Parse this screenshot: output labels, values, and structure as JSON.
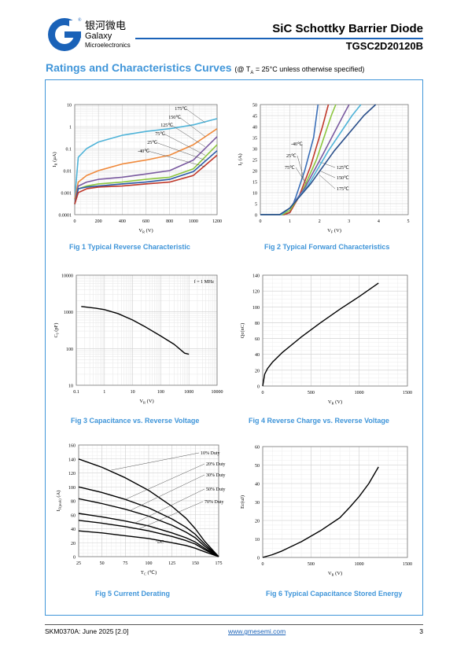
{
  "header": {
    "brand_cn": "银河微电",
    "brand_en": "Galaxy",
    "brand_sub": "Microelectronics",
    "doc_title": "SiC Schottky Barrier Diode",
    "part_no": "TGSC2D20120B"
  },
  "section": {
    "title": "Ratings and Characteristics Curves",
    "condition": "(@ T",
    "condition_sub": "A",
    "condition_rest": " = 25°C unless otherwise specified)"
  },
  "footer": {
    "left": "SKM0370A: June 2025 [2.0]",
    "link": "www.gmesemi.com",
    "page": "3"
  },
  "colors": {
    "accent": "#3f95d9",
    "brand": "#1a62b8"
  },
  "chart_data": [
    {
      "id": "fig1",
      "type": "line",
      "caption": "Fig 1    Typical Reverse Characteristic",
      "xlabel": "V",
      "xlabel_sub": "R",
      "xlabel_unit": "(V)",
      "ylabel": "I",
      "ylabel_sub": "R",
      "ylabel_unit": "(μA)",
      "xlim": [
        0,
        1200
      ],
      "ylim": [
        0.0001,
        10
      ],
      "ylog": true,
      "xticks": [
        "0",
        "200",
        "400",
        "600",
        "800",
        "1000",
        "1200"
      ],
      "yticks": [
        "0.0001",
        "0.001",
        "0.01",
        "0.1",
        "1",
        "10"
      ],
      "series": [
        {
          "name": "175℃",
          "color": "#4fb3d8",
          "points": [
            [
              0,
              0.0005
            ],
            [
              30,
              0.04
            ],
            [
              100,
              0.1
            ],
            [
              200,
              0.2
            ],
            [
              400,
              0.4
            ],
            [
              600,
              0.6
            ],
            [
              800,
              0.8
            ],
            [
              1000,
              1.2
            ],
            [
              1200,
              2.3
            ]
          ]
        },
        {
          "name": "150℃",
          "color": "#f08a3c",
          "points": [
            [
              0,
              0.0005
            ],
            [
              30,
              0.003
            ],
            [
              100,
              0.006
            ],
            [
              200,
              0.01
            ],
            [
              400,
              0.02
            ],
            [
              600,
              0.03
            ],
            [
              800,
              0.05
            ],
            [
              1000,
              0.15
            ],
            [
              1200,
              0.8
            ]
          ]
        },
        {
          "name": "125℃",
          "color": "#7a5aa0",
          "points": [
            [
              0,
              0.0003
            ],
            [
              30,
              0.002
            ],
            [
              100,
              0.003
            ],
            [
              200,
              0.004
            ],
            [
              400,
              0.005
            ],
            [
              600,
              0.007
            ],
            [
              800,
              0.01
            ],
            [
              1000,
              0.03
            ],
            [
              1200,
              0.35
            ]
          ]
        },
        {
          "name": "75℃",
          "color": "#8cc63e",
          "points": [
            [
              0,
              0.0003
            ],
            [
              30,
              0.0015
            ],
            [
              100,
              0.002
            ],
            [
              200,
              0.0025
            ],
            [
              400,
              0.003
            ],
            [
              600,
              0.004
            ],
            [
              800,
              0.005
            ],
            [
              1000,
              0.012
            ],
            [
              1200,
              0.15
            ]
          ]
        },
        {
          "name": "25℃",
          "color": "#2a5aa8",
          "points": [
            [
              0,
              0.0003
            ],
            [
              30,
              0.0015
            ],
            [
              100,
              0.0018
            ],
            [
              200,
              0.002
            ],
            [
              400,
              0.0025
            ],
            [
              600,
              0.003
            ],
            [
              800,
              0.004
            ],
            [
              1000,
              0.009
            ],
            [
              1200,
              0.08
            ]
          ]
        },
        {
          "name": "-40℃",
          "color": "#c0392b",
          "points": [
            [
              0,
              0.0003
            ],
            [
              30,
              0.001
            ],
            [
              100,
              0.0015
            ],
            [
              200,
              0.0018
            ],
            [
              400,
              0.002
            ],
            [
              600,
              0.0025
            ],
            [
              800,
              0.003
            ],
            [
              1000,
              0.006
            ],
            [
              1200,
              0.05
            ]
          ]
        }
      ]
    },
    {
      "id": "fig2",
      "type": "line",
      "caption": "Fig 2    Typical Forward Characteristics",
      "xlabel": "V",
      "xlabel_sub": "F",
      "xlabel_unit": "(V)",
      "ylabel": "I",
      "ylabel_sub": "F",
      "ylabel_unit": "(A)",
      "xlim": [
        0,
        5
      ],
      "ylim": [
        0,
        50
      ],
      "xticks": [
        "0",
        "1",
        "2",
        "3",
        "4",
        "5"
      ],
      "yticks": [
        "0",
        "5",
        "10",
        "15",
        "20",
        "25",
        "30",
        "35",
        "40",
        "45",
        "50"
      ],
      "series": [
        {
          "name": "-40℃",
          "color": "#3b6fb8",
          "points": [
            [
              0,
              0
            ],
            [
              0.8,
              0
            ],
            [
              1.0,
              1
            ],
            [
              1.2,
              8
            ],
            [
              1.5,
              20
            ],
            [
              1.8,
              35
            ],
            [
              1.95,
              50
            ]
          ]
        },
        {
          "name": "25℃",
          "color": "#c0392b",
          "points": [
            [
              0,
              0
            ],
            [
              0.8,
              0
            ],
            [
              1.0,
              1
            ],
            [
              1.3,
              8
            ],
            [
              1.7,
              22
            ],
            [
              2.1,
              40
            ],
            [
              2.3,
              50
            ]
          ]
        },
        {
          "name": "75℃",
          "color": "#8cc63e",
          "points": [
            [
              0,
              0
            ],
            [
              0.75,
              0
            ],
            [
              1.0,
              2
            ],
            [
              1.4,
              10
            ],
            [
              1.9,
              25
            ],
            [
              2.4,
              45
            ],
            [
              2.55,
              50
            ]
          ]
        },
        {
          "name": "125℃",
          "color": "#7a5aa0",
          "points": [
            [
              0,
              0
            ],
            [
              0.7,
              0
            ],
            [
              1.0,
              3
            ],
            [
              1.5,
              12
            ],
            [
              2.1,
              27
            ],
            [
              2.8,
              45
            ],
            [
              3.0,
              50
            ]
          ]
        },
        {
          "name": "150℃",
          "color": "#4fb3d8",
          "points": [
            [
              0,
              0
            ],
            [
              0.7,
              0
            ],
            [
              1.0,
              3
            ],
            [
              1.6,
              13
            ],
            [
              2.3,
              29
            ],
            [
              3.1,
              45
            ],
            [
              3.4,
              50
            ]
          ]
        },
        {
          "name": "175℃",
          "color": "#2a4f8a",
          "points": [
            [
              0,
              0
            ],
            [
              0.65,
              0
            ],
            [
              1.0,
              3
            ],
            [
              1.7,
              14
            ],
            [
              2.5,
              29
            ],
            [
              3.5,
              45
            ],
            [
              3.9,
              50
            ]
          ]
        }
      ]
    },
    {
      "id": "fig3",
      "type": "line",
      "caption": "Fig 3    Capacitance vs. Reverse Voltage",
      "xlabel": "V",
      "xlabel_sub": "R",
      "xlabel_unit": "(V)",
      "ylabel": "C",
      "ylabel_sub": "J",
      "ylabel_unit": "(pF)",
      "xlim": [
        0.1,
        10000
      ],
      "ylim": [
        10,
        10000
      ],
      "xlog": true,
      "ylog": true,
      "xticks": [
        "0.1",
        "1",
        "10",
        "100",
        "1000",
        "10000"
      ],
      "yticks": [
        "10",
        "100",
        "1000",
        "10000"
      ],
      "annotation": "f = 1 MHz",
      "series": [
        {
          "name": "",
          "color": "#000000",
          "points": [
            [
              0.15,
              1400
            ],
            [
              0.5,
              1250
            ],
            [
              1,
              1150
            ],
            [
              3,
              900
            ],
            [
              10,
              600
            ],
            [
              30,
              380
            ],
            [
              100,
              220
            ],
            [
              300,
              130
            ],
            [
              700,
              75
            ],
            [
              1000,
              70
            ]
          ]
        }
      ]
    },
    {
      "id": "fig4",
      "type": "line",
      "caption": "Fig 4    Reverse Charge vs. Reverse Voltage",
      "xlabel": "V",
      "xlabel_sub": "R",
      "xlabel_unit": "(V)",
      "ylabel": "Qc(nC)",
      "xlim": [
        0,
        1500
      ],
      "ylim": [
        0,
        140
      ],
      "xticks": [
        "0",
        "500",
        "1000",
        "1500"
      ],
      "yticks": [
        "0",
        "20",
        "40",
        "60",
        "80",
        "100",
        "120",
        "140"
      ],
      "series": [
        {
          "name": "",
          "color": "#000000",
          "points": [
            [
              0,
              0
            ],
            [
              20,
              15
            ],
            [
              50,
              22
            ],
            [
              100,
              30
            ],
            [
              200,
              42
            ],
            [
              400,
              62
            ],
            [
              600,
              80
            ],
            [
              800,
              97
            ],
            [
              1000,
              113
            ],
            [
              1200,
              130
            ]
          ]
        }
      ]
    },
    {
      "id": "fig5",
      "type": "line",
      "caption": "Fig 5    Current Derating",
      "xlabel": "T",
      "xlabel_sub": "C",
      "xlabel_unit": "(℃)",
      "ylabel": "I",
      "ylabel_sub": "F(peak)",
      "ylabel_unit": "(A)",
      "xlim": [
        25,
        175
      ],
      "ylim": [
        0,
        160
      ],
      "xticks": [
        "25",
        "50",
        "75",
        "100",
        "125",
        "150",
        "175"
      ],
      "yticks": [
        "0",
        "20",
        "40",
        "60",
        "80",
        "100",
        "120",
        "140",
        "160"
      ],
      "series": [
        {
          "name": "10% Duty",
          "color": "#000000",
          "points": [
            [
              25,
              140
            ],
            [
              50,
              128
            ],
            [
              75,
              113
            ],
            [
              100,
              95
            ],
            [
              125,
              72
            ],
            [
              140,
              55
            ],
            [
              150,
              40
            ],
            [
              160,
              22
            ],
            [
              175,
              0
            ]
          ]
        },
        {
          "name": "20% Duty",
          "color": "#000000",
          "points": [
            [
              25,
              100
            ],
            [
              50,
              92
            ],
            [
              75,
              82
            ],
            [
              100,
              70
            ],
            [
              125,
              54
            ],
            [
              140,
              42
            ],
            [
              150,
              32
            ],
            [
              160,
              18
            ],
            [
              175,
              0
            ]
          ]
        },
        {
          "name": "30% Duty",
          "color": "#000000",
          "points": [
            [
              25,
              83
            ],
            [
              50,
              76
            ],
            [
              75,
              68
            ],
            [
              100,
              58
            ],
            [
              125,
              45
            ],
            [
              140,
              35
            ],
            [
              150,
              27
            ],
            [
              160,
              15
            ],
            [
              175,
              0
            ]
          ]
        },
        {
          "name": "50% Duty",
          "color": "#000000",
          "points": [
            [
              25,
              62
            ],
            [
              50,
              57
            ],
            [
              75,
              51
            ],
            [
              100,
              44
            ],
            [
              125,
              34
            ],
            [
              140,
              27
            ],
            [
              150,
              21
            ],
            [
              160,
              12
            ],
            [
              175,
              0
            ]
          ]
        },
        {
          "name": "70% Duty",
          "color": "#000000",
          "points": [
            [
              25,
              52
            ],
            [
              50,
              48
            ],
            [
              75,
              43
            ],
            [
              100,
              37
            ],
            [
              125,
              29
            ],
            [
              140,
              23
            ],
            [
              150,
              18
            ],
            [
              160,
              10
            ],
            [
              175,
              0
            ]
          ]
        },
        {
          "name": "DC",
          "color": "#000000",
          "points": [
            [
              25,
              37
            ],
            [
              50,
              34
            ],
            [
              75,
              30
            ],
            [
              100,
              26
            ],
            [
              125,
              20
            ],
            [
              140,
              16
            ],
            [
              150,
              12
            ],
            [
              160,
              7
            ],
            [
              175,
              0
            ]
          ]
        }
      ]
    },
    {
      "id": "fig6",
      "type": "line",
      "caption": "Fig 6    Typical Capacitance Stored Energy",
      "xlabel": "V",
      "xlabel_sub": "R",
      "xlabel_unit": "(V)",
      "ylabel": "Ec(uJ)",
      "xlim": [
        0,
        1500
      ],
      "ylim": [
        0,
        60
      ],
      "xticks": [
        "0",
        "500",
        "1000",
        "1500"
      ],
      "yticks": [
        "0",
        "10",
        "20",
        "30",
        "40",
        "50",
        "60"
      ],
      "series": [
        {
          "name": "",
          "color": "#000000",
          "points": [
            [
              0,
              0
            ],
            [
              100,
              1.5
            ],
            [
              200,
              3.5
            ],
            [
              400,
              8.5
            ],
            [
              600,
              14.5
            ],
            [
              800,
              21.5
            ],
            [
              900,
              27
            ],
            [
              1000,
              33
            ],
            [
              1100,
              40
            ],
            [
              1200,
              49
            ]
          ]
        }
      ]
    }
  ]
}
